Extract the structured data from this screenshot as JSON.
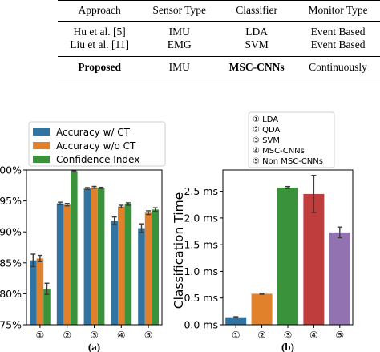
{
  "table": {
    "headers": [
      "Approach",
      "Sensor Type",
      "Classifier",
      "Monitor Type"
    ],
    "rows": [
      [
        "Hu et al. [5]",
        "IMU",
        "LDA",
        "Event Based"
      ],
      [
        "Liu et al. [11]",
        "EMG",
        "SVM",
        "Event Based"
      ],
      [
        "Proposed",
        "IMU",
        "MSC-CNNs",
        "Continuously"
      ]
    ]
  },
  "chart_data": [
    {
      "type": "bar",
      "caption": "(a)",
      "categories": [
        "①",
        "②",
        "③",
        "④",
        "⑤"
      ],
      "series": [
        {
          "name": "Accuracy w/ CT",
          "color": "#3274a1",
          "values": [
            85.4,
            94.6,
            97.0,
            91.8,
            90.6
          ],
          "errors": [
            1.0,
            0.2,
            0.15,
            0.6,
            0.7
          ]
        },
        {
          "name": "Accuracy w/o CT",
          "color": "#e1812c",
          "values": [
            85.7,
            94.4,
            97.2,
            94.1,
            93.1
          ],
          "errors": [
            0.5,
            0.2,
            0.15,
            0.2,
            0.3
          ]
        },
        {
          "name": "Confidence Index",
          "color": "#3a923a",
          "values": [
            80.8,
            99.8,
            97.1,
            94.5,
            93.6
          ],
          "errors": [
            0.9,
            0.1,
            0.1,
            0.2,
            0.3
          ]
        }
      ],
      "ylim": [
        75,
        100
      ],
      "yticks": [
        "75%",
        "80%",
        "85%",
        "90%",
        "95%",
        "100%"
      ],
      "ytick_values": [
        75,
        80,
        85,
        90,
        95,
        100
      ],
      "legend": "top-left",
      "grid": false
    },
    {
      "type": "bar",
      "caption": "(b)",
      "ylabel": "Classification Time",
      "categories": [
        "①",
        "②",
        "③",
        "④",
        "⑤"
      ],
      "values": [
        0.14,
        0.58,
        2.57,
        2.45,
        1.73
      ],
      "errors": [
        0.01,
        0.01,
        0.02,
        0.35,
        0.1
      ],
      "colors": [
        "#3274a1",
        "#e1812c",
        "#3a923a",
        "#c03d3e",
        "#9372b2"
      ],
      "ylim": [
        0,
        2.9
      ],
      "yticks": [
        "0.0 ms",
        "0.5 ms",
        "1.0 ms",
        "1.5 ms",
        "2.0 ms",
        "2.5 ms"
      ],
      "ytick_values": [
        0,
        0.5,
        1.0,
        1.5,
        2.0,
        2.5
      ],
      "legend_entries": [
        "① LDA",
        "② QDA",
        "③ SVM",
        "④ MSC-CNNs",
        "⑤ Non MSC-CNNs"
      ],
      "legend": "top-center",
      "grid": false
    }
  ]
}
